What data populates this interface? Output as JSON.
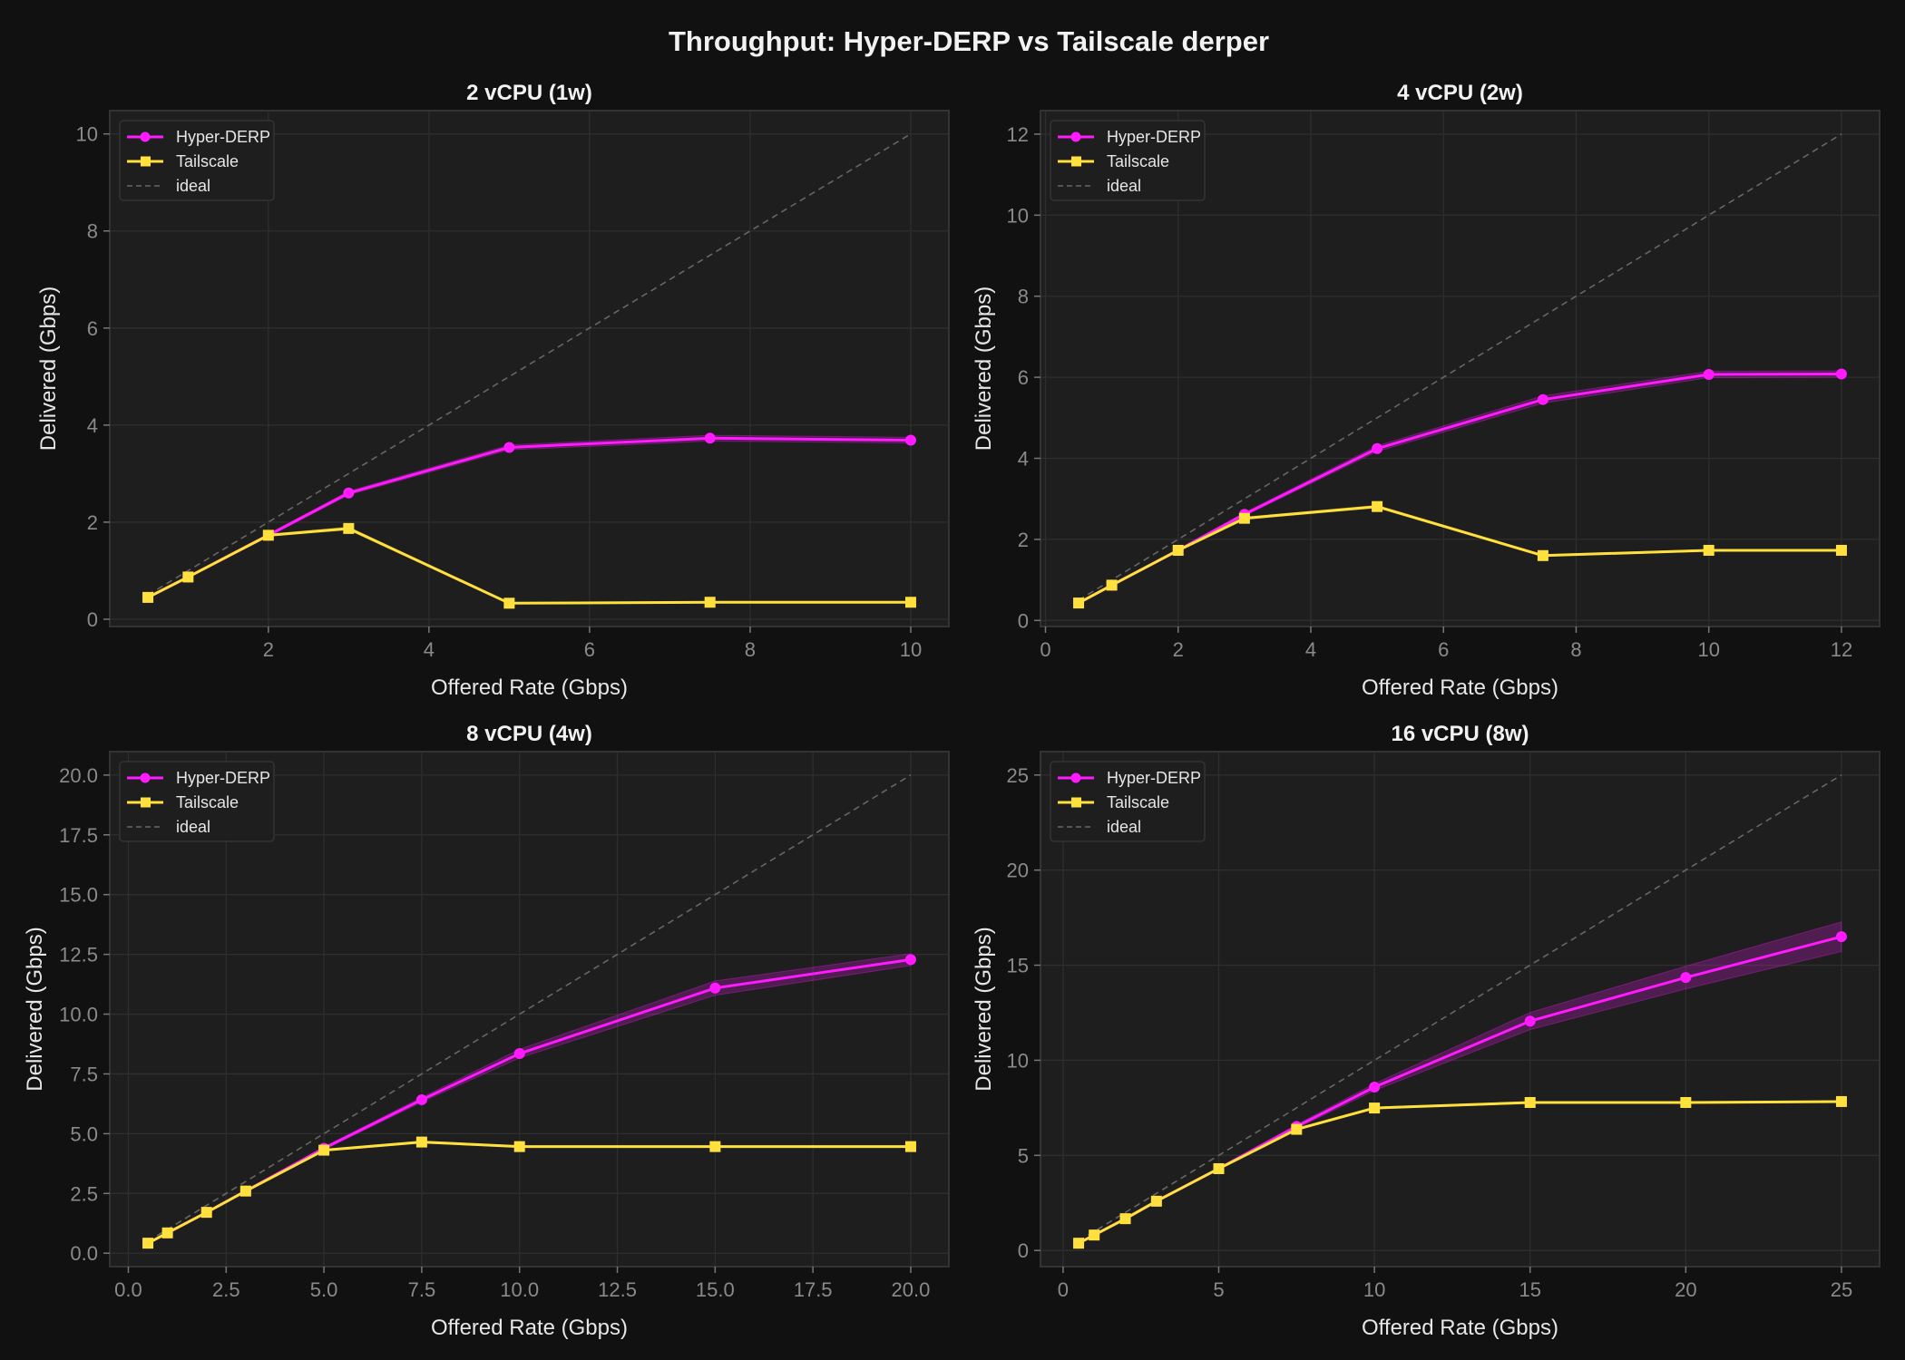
{
  "chart_data": {
    "title": "Throughput: Hyper-DERP vs Tailscale derper",
    "theme": {
      "figure_bg": "#111111",
      "axes_bg": "#1e1e1e",
      "grid": "#2e2e2e",
      "spine": "#333333",
      "ideal_color": "#666666",
      "legend_bg": "#1e1e1e",
      "legend_edge": "#333333"
    },
    "legend_labels": {
      "hyper": "Hyper-DERP",
      "tailscale": "Tailscale",
      "ideal": "ideal"
    },
    "series_style": {
      "hyper": {
        "color": "#ff1aff",
        "marker": "circle"
      },
      "tailscale": {
        "color": "#ffe03d",
        "marker": "square"
      },
      "ideal": {
        "color": "#666666",
        "dash": "dashed"
      }
    },
    "legend_placement": "top-left",
    "grid": true,
    "panels": [
      {
        "type": "line",
        "title": "2 vCPU (1w)",
        "xlabel": "Offered Rate (Gbps)",
        "ylabel": "Delivered (Gbps)",
        "x": [
          0.5,
          1,
          2,
          3,
          5,
          7.5,
          10
        ],
        "xlim": [
          0.025,
          10.475
        ],
        "ylim": [
          -0.15,
          10.48
        ],
        "xticks": [
          2,
          4,
          6,
          8,
          10
        ],
        "xtick_labels": [
          "2",
          "4",
          "6",
          "8",
          "10"
        ],
        "yticks": [
          0,
          2,
          4,
          6,
          8,
          10
        ],
        "ytick_labels": [
          "0",
          "2",
          "4",
          "6",
          "8",
          "10"
        ],
        "series": [
          {
            "name": "Hyper-DERP",
            "key": "hyper",
            "values": [
              0.45,
              0.87,
              1.73,
              2.6,
              3.54,
              3.73,
              3.69
            ],
            "band": [
              0.02,
              0.02,
              0.03,
              0.04,
              0.05,
              0.06,
              0.06
            ]
          },
          {
            "name": "Tailscale",
            "key": "tailscale",
            "values": [
              0.45,
              0.87,
              1.73,
              1.87,
              0.33,
              0.35,
              0.35
            ],
            "band": [
              0.01,
              0.01,
              0.02,
              0.03,
              0.01,
              0.01,
              0.01
            ]
          }
        ],
        "ideal": [
          0.5,
          10
        ]
      },
      {
        "type": "line",
        "title": "4 vCPU (2w)",
        "xlabel": "Offered Rate (Gbps)",
        "ylabel": "Delivered (Gbps)",
        "x": [
          0.5,
          1,
          2,
          3,
          5,
          7.5,
          10,
          12
        ],
        "xlim": [
          -0.075,
          12.575
        ],
        "ylim": [
          -0.15,
          12.58
        ],
        "xticks": [
          0,
          2,
          4,
          6,
          8,
          10,
          12
        ],
        "xtick_labels": [
          "0",
          "2",
          "4",
          "6",
          "8",
          "10",
          "12"
        ],
        "yticks": [
          0,
          2,
          4,
          6,
          8,
          10,
          12
        ],
        "ytick_labels": [
          "0",
          "2",
          "4",
          "6",
          "8",
          "10",
          "12"
        ],
        "series": [
          {
            "name": "Hyper-DERP",
            "key": "hyper",
            "values": [
              0.43,
              0.87,
              1.73,
              2.62,
              4.24,
              5.45,
              6.07,
              6.08
            ],
            "band": [
              0.02,
              0.02,
              0.03,
              0.04,
              0.07,
              0.09,
              0.08,
              0.08
            ]
          },
          {
            "name": "Tailscale",
            "key": "tailscale",
            "values": [
              0.43,
              0.87,
              1.73,
              2.52,
              2.81,
              1.6,
              1.73,
              1.73
            ],
            "band": [
              0.01,
              0.01,
              0.02,
              0.03,
              0.03,
              0.02,
              0.02,
              0.02
            ]
          }
        ],
        "ideal": [
          0.5,
          12
        ]
      },
      {
        "type": "line",
        "title": "8 vCPU (4w)",
        "xlabel": "Offered Rate (Gbps)",
        "ylabel": "Delivered (Gbps)",
        "x": [
          0.5,
          1,
          2,
          3,
          5,
          7.5,
          10,
          15,
          20
        ],
        "xlim": [
          -0.475,
          20.975
        ],
        "ylim": [
          -0.56,
          20.98
        ],
        "xticks": [
          0,
          2.5,
          5,
          7.5,
          10,
          12.5,
          15,
          17.5,
          20
        ],
        "xtick_labels": [
          "0.0",
          "2.5",
          "5.0",
          "7.5",
          "10.0",
          "12.5",
          "15.0",
          "17.5",
          "20.0"
        ],
        "yticks": [
          0,
          2.5,
          5,
          7.5,
          10,
          12.5,
          15,
          17.5,
          20
        ],
        "ytick_labels": [
          "0.0",
          "2.5",
          "5.0",
          "7.5",
          "10.0",
          "12.5",
          "15.0",
          "17.5",
          "20.0"
        ],
        "series": [
          {
            "name": "Hyper-DERP",
            "key": "hyper",
            "values": [
              0.42,
              0.85,
              1.71,
              2.6,
              4.39,
              6.42,
              8.35,
              11.09,
              12.28
            ],
            "band": [
              0.02,
              0.02,
              0.03,
              0.04,
              0.06,
              0.1,
              0.18,
              0.3,
              0.25
            ]
          },
          {
            "name": "Tailscale",
            "key": "tailscale",
            "values": [
              0.42,
              0.85,
              1.71,
              2.6,
              4.31,
              4.65,
              4.46,
              4.46,
              4.46
            ],
            "band": [
              0.01,
              0.01,
              0.02,
              0.03,
              0.04,
              0.04,
              0.03,
              0.03,
              0.03
            ]
          }
        ],
        "ideal": [
          0.5,
          20
        ]
      },
      {
        "type": "line",
        "title": "16 vCPU (8w)",
        "xlabel": "Offered Rate (Gbps)",
        "ylabel": "Delivered (Gbps)",
        "x": [
          0.5,
          1,
          2,
          3,
          5,
          7.5,
          10,
          15,
          20,
          25
        ],
        "xlim": [
          -0.725,
          26.225
        ],
        "ylim": [
          -0.85,
          26.23
        ],
        "xticks": [
          0,
          5,
          10,
          15,
          20,
          25
        ],
        "xtick_labels": [
          "0",
          "5",
          "10",
          "15",
          "20",
          "25"
        ],
        "yticks": [
          0,
          5,
          10,
          15,
          20,
          25
        ],
        "ytick_labels": [
          "0",
          "5",
          "10",
          "15",
          "20",
          "25"
        ],
        "series": [
          {
            "name": "Hyper-DERP",
            "key": "hyper",
            "values": [
              0.38,
              0.81,
              1.67,
              2.59,
              4.3,
              6.52,
              8.59,
              12.06,
              14.35,
              16.5
            ],
            "band": [
              0.02,
              0.02,
              0.03,
              0.04,
              0.06,
              0.1,
              0.18,
              0.45,
              0.6,
              0.78
            ]
          },
          {
            "name": "Tailscale",
            "key": "tailscale",
            "values": [
              0.38,
              0.81,
              1.67,
              2.59,
              4.3,
              6.37,
              7.49,
              7.78,
              7.78,
              7.83
            ],
            "band": [
              0.01,
              0.01,
              0.02,
              0.03,
              0.04,
              0.05,
              0.05,
              0.04,
              0.04,
              0.04
            ]
          }
        ],
        "ideal": [
          0.5,
          25
        ]
      }
    ]
  }
}
